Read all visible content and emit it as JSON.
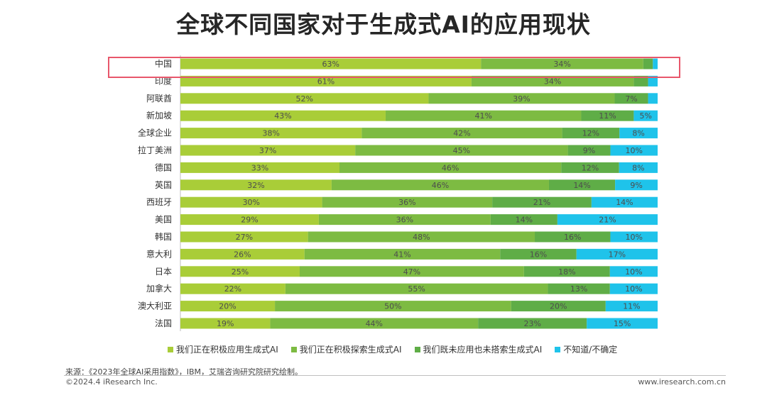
{
  "title": "全球不同国家对于生成式AI的应用现状",
  "colors": {
    "s1": "#a9cd38",
    "s2": "#7dbb42",
    "s3": "#5fad47",
    "s4": "#1fc3ea",
    "highlight": "#e8576b"
  },
  "chart_data": {
    "type": "bar",
    "orientation": "horizontal-stacked-100",
    "categories": [
      "中国",
      "印度",
      "阿联酋",
      "新加坡",
      "全球企业",
      "拉丁美洲",
      "德国",
      "英国",
      "西班牙",
      "美国",
      "韩国",
      "意大利",
      "日本",
      "加拿大",
      "澳大利亚",
      "法国"
    ],
    "series": [
      {
        "name": "我们正在积极应用生成式AI",
        "values": [
          63,
          61,
          52,
          43,
          38,
          37,
          33,
          32,
          30,
          29,
          27,
          26,
          25,
          22,
          20,
          19
        ],
        "labels": [
          "63%",
          "61%",
          "52%",
          "43%",
          "38%",
          "37%",
          "33%",
          "32%",
          "30%",
          "29%",
          "27%",
          "26%",
          "25%",
          "22%",
          "20%",
          "19%"
        ]
      },
      {
        "name": "我们正在积极探索生成式AI",
        "values": [
          34,
          34,
          39,
          41,
          42,
          45,
          46,
          46,
          36,
          36,
          48,
          41,
          47,
          55,
          50,
          44
        ],
        "labels": [
          "34%",
          "34%",
          "39%",
          "41%",
          "42%",
          "45%",
          "46%",
          "46%",
          "36%",
          "36%",
          "48%",
          "41%",
          "47%",
          "55%",
          "50%",
          "44%"
        ]
      },
      {
        "name": "我们既未应用也未搭索生成式AI",
        "values": [
          2,
          3,
          7,
          11,
          12,
          9,
          12,
          14,
          21,
          14,
          16,
          16,
          18,
          13,
          20,
          23
        ],
        "labels": [
          "",
          "",
          "7%",
          "11%",
          "12%",
          "9%",
          "12%",
          "14%",
          "21%",
          "14%",
          "16%",
          "16%",
          "18%",
          "13%",
          "20%",
          "23%"
        ]
      },
      {
        "name": "不知道/不确定",
        "values": [
          1,
          2,
          2,
          5,
          8,
          10,
          8,
          9,
          14,
          21,
          10,
          17,
          10,
          10,
          11,
          15
        ],
        "labels": [
          "",
          "",
          "",
          "5%",
          "8%",
          "10%",
          "8%",
          "9%",
          "14%",
          "21%",
          "10%",
          "17%",
          "10%",
          "10%",
          "11%",
          "15%"
        ]
      }
    ],
    "highlighted_category": "中国"
  },
  "source": "来源：《2023年全球AI采用指数》，IBM，艾瑞咨询研究院研究绘制。",
  "copyright": "©2024.4 iResearch Inc.",
  "website": "www.iresearch.com.cn"
}
